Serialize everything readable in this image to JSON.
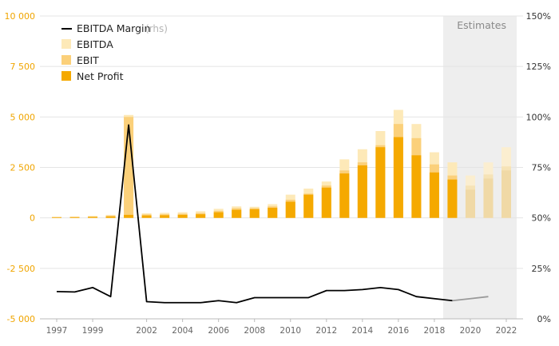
{
  "chart_data": {
    "type": "bar",
    "title": "",
    "x": [
      1997,
      1998,
      1999,
      2000,
      2001,
      2002,
      2003,
      2004,
      2005,
      2006,
      2007,
      2008,
      2009,
      2010,
      2011,
      2012,
      2013,
      2014,
      2015,
      2016,
      2017,
      2018,
      2019,
      2020,
      2021,
      2022
    ],
    "x_tick_labels": [
      "1997",
      "1999",
      "2002",
      "2004",
      "2006",
      "2008",
      "2010",
      "2012",
      "2014",
      "2016",
      "2018",
      "2020",
      "2022"
    ],
    "y_left_ticks": [
      "10 000",
      "7 500",
      "5 000",
      "2 500",
      "0",
      "-2 500",
      "-5 000"
    ],
    "y_left_range": [
      -5000,
      10000
    ],
    "y_right_ticks": [
      "150%",
      "125%",
      "100%",
      "75%",
      "50%",
      "25%",
      "0%"
    ],
    "y_right_range": [
      0,
      150
    ],
    "estimates_label": "Estimates",
    "estimates_from": 2019,
    "series": [
      {
        "name": "EBITDA",
        "kind": "bar-overlay",
        "values": [
          60,
          70,
          100,
          150,
          5100,
          230,
          250,
          280,
          330,
          450,
          570,
          550,
          680,
          1150,
          1450,
          1800,
          2900,
          3400,
          4300,
          5350,
          4650,
          3250,
          2750,
          2100,
          2750,
          3500
        ]
      },
      {
        "name": "EBIT",
        "kind": "bar-overlay",
        "values": [
          40,
          50,
          70,
          110,
          5000,
          170,
          180,
          200,
          240,
          350,
          480,
          480,
          570,
          900,
          1200,
          1600,
          2350,
          2750,
          3600,
          4650,
          3950,
          2650,
          2100,
          1600,
          2150,
          2550
        ]
      },
      {
        "name": "Net Profit",
        "kind": "bar-overlay",
        "values": [
          25,
          30,
          45,
          70,
          150,
          120,
          130,
          150,
          180,
          280,
          400,
          430,
          500,
          800,
          1150,
          1500,
          2200,
          2600,
          3500,
          4000,
          3100,
          2250,
          1900,
          1400,
          1950,
          2350
        ]
      },
      {
        "name": "EBITDA Margin",
        "name_suffix": "(rhs)",
        "kind": "line",
        "axis": "right",
        "values": [
          13.5,
          13.3,
          15.5,
          11,
          96,
          8.5,
          8,
          8,
          8,
          9,
          8,
          10.5,
          10.5,
          10.5,
          10.5,
          14,
          14,
          14.5,
          15.5,
          14.5,
          11,
          10,
          9,
          10,
          11,
          null
        ]
      }
    ],
    "legend_placement": "top-left",
    "grid": true
  }
}
